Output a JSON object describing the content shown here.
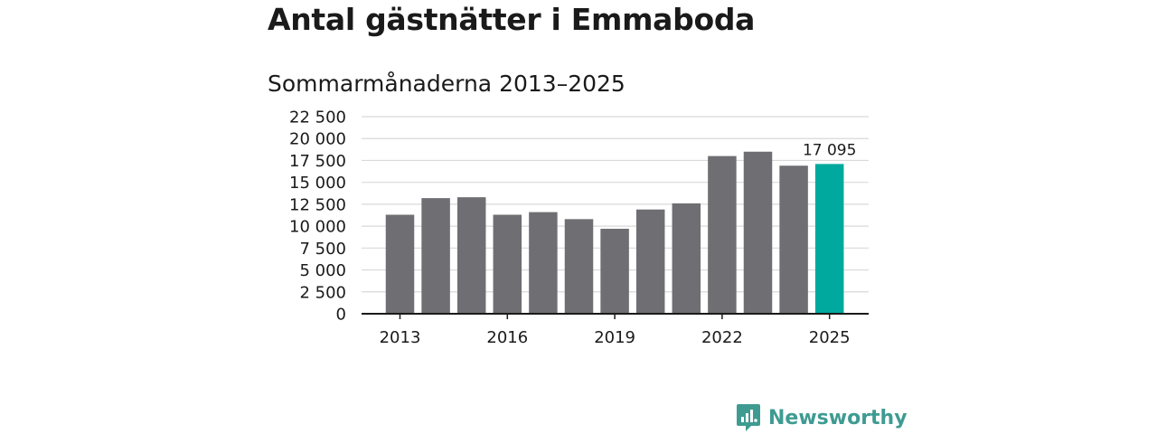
{
  "title": "Antal gästnätter i Emmaboda",
  "subtitle": "Sommarmånaderna 2013–2025",
  "brand": {
    "name": "Newsworthy",
    "icon": "newsworthy-logo-icon",
    "color": "#3f9b92"
  },
  "colors": {
    "bar": "#6f6e73",
    "highlight": "#00a99d",
    "grid": "#d9d9d9",
    "axis": "#1a1a1a"
  },
  "chart_data": {
    "type": "bar",
    "title": "Antal gästnätter i Emmaboda",
    "subtitle": "Sommarmånaderna 2013–2025",
    "xlabel": "",
    "ylabel": "",
    "categories": [
      "2013",
      "2014",
      "2015",
      "2016",
      "2017",
      "2018",
      "2019",
      "2020",
      "2021",
      "2022",
      "2023",
      "2024",
      "2025"
    ],
    "values": [
      11300,
      13200,
      13300,
      11300,
      11600,
      10800,
      9700,
      11900,
      12600,
      18000,
      18500,
      16900,
      17095
    ],
    "highlight_index": 12,
    "data_labels": [
      {
        "index": 12,
        "text": "17 095"
      }
    ],
    "xticks": [
      "2013",
      "2016",
      "2019",
      "2022",
      "2025"
    ],
    "yticks": [
      {
        "value": 0,
        "label": "0"
      },
      {
        "value": 2500,
        "label": "2 500"
      },
      {
        "value": 5000,
        "label": "5 000"
      },
      {
        "value": 7500,
        "label": "7 500"
      },
      {
        "value": 10000,
        "label": "10 000"
      },
      {
        "value": 12500,
        "label": "12 500"
      },
      {
        "value": 15000,
        "label": "15 000"
      },
      {
        "value": 17500,
        "label": "17 500"
      },
      {
        "value": 20000,
        "label": "20 000"
      },
      {
        "value": 22500,
        "label": "22 500"
      }
    ],
    "ylim": [
      0,
      22500
    ],
    "grid": true,
    "legend": "none"
  }
}
